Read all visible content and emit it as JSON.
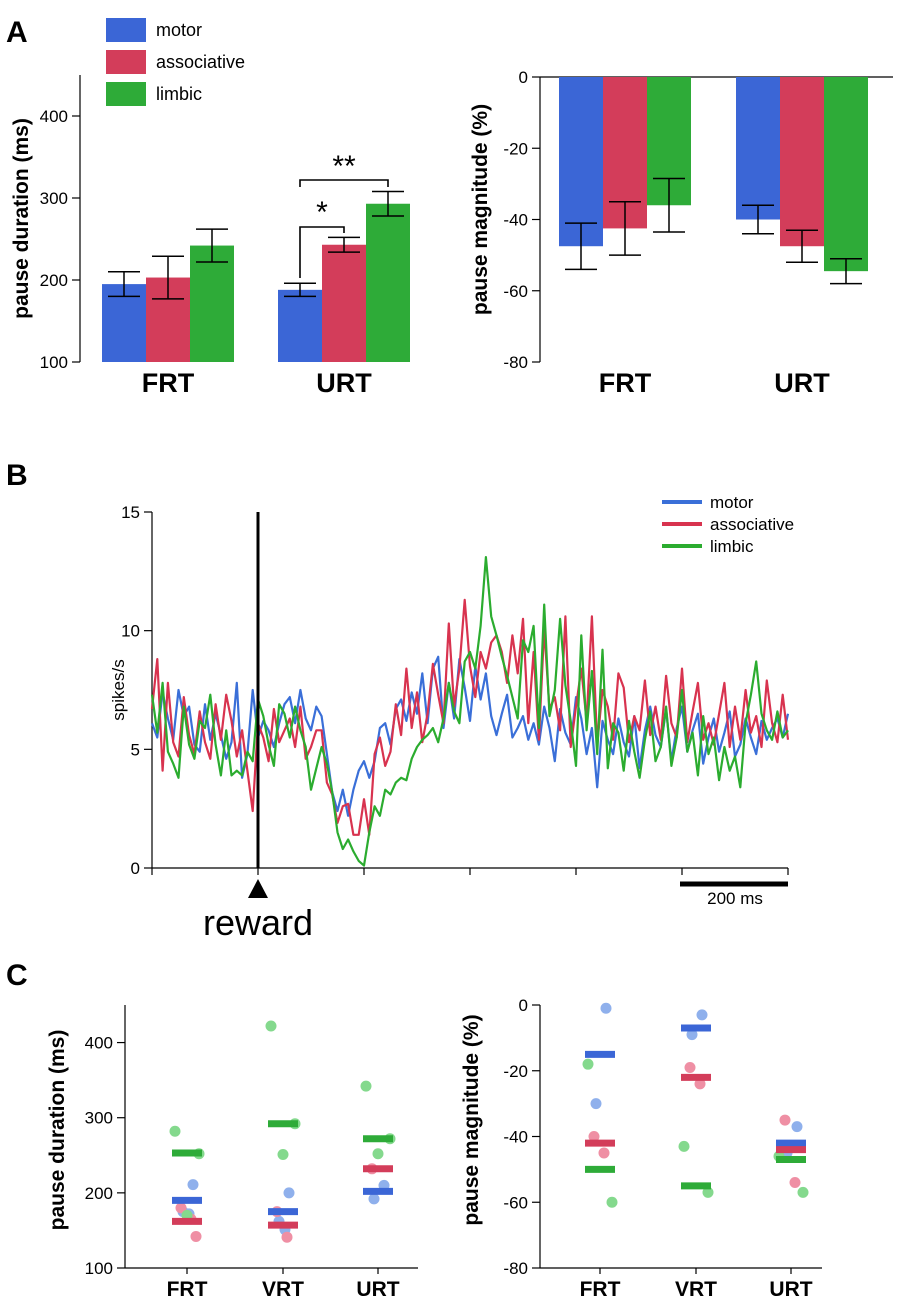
{
  "colors": {
    "motor": "#3b66d6",
    "associative": "#d33d5a",
    "limbic": "#2eab38",
    "motor_dot": "#8fb0ec",
    "associative_dot": "#ef8fa4",
    "limbic_dot": "#84d98d",
    "motor_line": "#3a6fd8",
    "associative_line": "#d8334f",
    "limbic_line": "#2bac2f"
  },
  "panels": {
    "a": "A",
    "b": "B",
    "c": "C"
  },
  "chart_data": [
    {
      "id": "A-duration",
      "type": "bar",
      "panel": "A",
      "categories": [
        "FRT",
        "URT"
      ],
      "series": [
        {
          "name": "motor",
          "values": [
            195,
            188
          ],
          "errors": [
            15,
            8
          ]
        },
        {
          "name": "associative",
          "values": [
            203,
            243
          ],
          "errors": [
            26,
            9
          ]
        },
        {
          "name": "limbic",
          "values": [
            242,
            293
          ],
          "errors": [
            20,
            15
          ]
        }
      ],
      "ylabel": "pause duration (ms)",
      "ylim": [
        100,
        450
      ],
      "yticks": [
        100,
        200,
        300,
        400
      ],
      "legend": [
        "motor",
        "associative",
        "limbic"
      ],
      "legend_position": "top-left",
      "significance": [
        {
          "label": "*",
          "between": [
            "motor",
            "associative"
          ],
          "category": "URT"
        },
        {
          "label": "**",
          "between": [
            "motor",
            "limbic"
          ],
          "category": "URT"
        }
      ]
    },
    {
      "id": "A-magnitude",
      "type": "bar",
      "panel": "A",
      "categories": [
        "FRT",
        "URT"
      ],
      "series": [
        {
          "name": "motor",
          "values": [
            -47.5,
            -40
          ],
          "errors": [
            6.5,
            4
          ]
        },
        {
          "name": "associative",
          "values": [
            -42.5,
            -47.5
          ],
          "errors": [
            7.5,
            4.5
          ]
        },
        {
          "name": "limbic",
          "values": [
            -36,
            -54.5
          ],
          "errors": [
            7.5,
            3.5
          ]
        }
      ],
      "ylabel": "pause magnitude (%)",
      "ylim": [
        -80,
        0
      ],
      "yticks": [
        0,
        -20,
        -40,
        -60,
        -80
      ]
    },
    {
      "id": "B-timecourse",
      "type": "line",
      "panel": "B",
      "ylabel": "spikes/s",
      "ylim": [
        0,
        15
      ],
      "yticks": [
        0,
        5,
        10,
        15
      ],
      "x_unit": "bin",
      "x_range": [
        0,
        120
      ],
      "event_bin": 20,
      "event_label": "reward",
      "scalebar_label": "200 ms",
      "scalebar_bins": [
        100,
        120
      ],
      "legend": [
        "motor",
        "associative",
        "limbic"
      ],
      "legend_position": "top-right",
      "series": [
        {
          "name": "motor",
          "values": [
            6.1,
            5.5,
            7.4,
            6.3,
            5.4,
            7.5,
            6.4,
            6.8,
            5.2,
            4.9,
            6.9,
            5.4,
            6.5,
            5.6,
            4.6,
            5.3,
            7.8,
            3.8,
            4.8,
            7.5,
            5.5,
            6.2,
            5.8,
            5.1,
            6.1,
            6.9,
            7.2,
            6.1,
            7.5,
            6.3,
            5.8,
            6.8,
            6.4,
            4.8,
            3.2,
            2.4,
            3.3,
            2.2,
            3.3,
            4.1,
            4.5,
            3.8,
            4.5,
            5.9,
            6.1,
            5.2,
            6.7,
            7.1,
            6.2,
            7.4,
            6.5,
            8.2,
            6.1,
            8.4,
            8.9,
            5.9,
            7.8,
            6.3,
            8.8,
            7.6,
            6.2,
            8.5,
            7.1,
            8.2,
            6.4,
            5.6,
            6.5,
            7.3,
            5.5,
            5.9,
            6.4,
            5.4,
            6.1,
            5.2,
            6.8,
            5.9,
            4.5,
            6.7,
            5.7,
            5.2,
            7.2,
            6.3,
            4.8,
            5.9,
            3.4,
            6.2,
            5.4,
            4.8,
            6.3,
            5.3,
            4.7,
            6.4,
            4.2,
            5.8,
            6.8,
            5.6,
            5.1,
            6.7,
            4.5,
            5.9,
            6.8,
            4.9,
            5.8,
            6.5,
            4.4,
            5.5,
            6.3,
            4.9,
            5.7,
            6.6,
            4.7,
            5.2,
            6.3,
            5.5,
            4.8,
            6.2,
            5.4,
            5.9,
            6.3,
            5.5,
            6.5
          ]
        },
        {
          "name": "associative",
          "values": [
            6.7,
            8.8,
            4.1,
            7.8,
            5.3,
            4.7,
            7.2,
            5.6,
            4.8,
            6.6,
            5.3,
            4.6,
            6.9,
            5.4,
            7.3,
            6.2,
            4.7,
            5.8,
            4.1,
            2.4,
            6.1,
            5.5,
            4.5,
            6.7,
            5.3,
            5.8,
            6.3,
            5.1,
            6.8,
            4.6,
            5.1,
            5.8,
            5.8,
            3.6,
            3.1,
            1.9,
            2.6,
            2.7,
            1.4,
            1.4,
            2.9,
            1.4,
            4.8,
            5.5,
            4.3,
            4.9,
            6.9,
            5.6,
            8.4,
            5.9,
            7.4,
            5.3,
            6.5,
            8.6,
            7.3,
            6.1,
            10.3,
            6.8,
            8.4,
            11.3,
            8.5,
            7.2,
            9.1,
            8.4,
            9.5,
            9.8,
            9.1,
            7.8,
            9.8,
            8.2,
            10.5,
            6.1,
            9.1,
            5.4,
            10.1,
            6.7,
            7.2,
            5.8,
            10.6,
            5.1,
            6.8,
            8.4,
            6.2,
            10.6,
            5.2,
            7.5,
            6.8,
            5.4,
            8.2,
            7.6,
            5.3,
            6.4,
            5.8,
            7.9,
            5.6,
            6.8,
            5.4,
            8.1,
            6.1,
            5.5,
            8.4,
            5.3,
            6.6,
            7.8,
            5.4,
            6.1,
            5.2,
            6.5,
            7.8,
            5.1,
            6.8,
            5.4,
            7.5,
            5.7,
            6.4,
            5.1,
            7.9,
            6.1,
            5.3,
            7.3,
            5.4
          ]
        },
        {
          "name": "limbic",
          "values": [
            7.3,
            5.7,
            7.8,
            4.9,
            4.4,
            3.8,
            6.8,
            5.2,
            4.6,
            6.2,
            5.9,
            7.3,
            5.2,
            3.9,
            5.8,
            3.9,
            4.1,
            3.9,
            4.9,
            4.5,
            7.1,
            6.4,
            5.2,
            4.3,
            6.9,
            6.5,
            5.5,
            6.8,
            5.8,
            5.1,
            3.3,
            4.2,
            5.1,
            4.4,
            3.2,
            1.5,
            0.8,
            1.2,
            0.7,
            0.3,
            0.1,
            1.5,
            2.6,
            2.2,
            3.3,
            3.1,
            3.6,
            3.8,
            3.7,
            4.6,
            5.1,
            5.4,
            5.6,
            5.9,
            5.3,
            6.3,
            7.8,
            6.6,
            6.1,
            8.7,
            9.1,
            8.4,
            10.2,
            13.1,
            10.6,
            9.8,
            8.9,
            8.1,
            7.2,
            6.3,
            9.6,
            9.1,
            10.2,
            5.9,
            11.1,
            6.4,
            7.5,
            10.5,
            7.7,
            6.2,
            4.3,
            9.8,
            5.8,
            8.3,
            4.8,
            9.2,
            4.2,
            6.1,
            5.7,
            4.1,
            6.2,
            4.9,
            3.8,
            5.4,
            6.6,
            4.5,
            5.1,
            6.8,
            4.3,
            5.5,
            7.5,
            4.9,
            5.7,
            3.9,
            6.4,
            4.8,
            5.5,
            3.7,
            5.1,
            4.1,
            4.7,
            3.4,
            6.1,
            7.3,
            8.7,
            6.5,
            5.8,
            5.4,
            6.6,
            5.5,
            5.8
          ]
        }
      ]
    },
    {
      "id": "C-duration",
      "type": "scatter",
      "panel": "C",
      "categories": [
        "FRT",
        "VRT",
        "URT"
      ],
      "ylabel": "pause duration (ms)",
      "ylim": [
        100,
        450
      ],
      "yticks": [
        100,
        200,
        300,
        400
      ],
      "means": [
        {
          "name": "motor",
          "values": [
            190,
            175,
            202
          ]
        },
        {
          "name": "associative",
          "values": [
            162,
            157,
            232
          ]
        },
        {
          "name": "limbic",
          "values": [
            253,
            292,
            272
          ]
        }
      ],
      "points": [
        {
          "name": "motor",
          "cat": 0,
          "values": [
            211,
            175,
            172
          ]
        },
        {
          "name": "associative",
          "cat": 0,
          "values": [
            180,
            165,
            142
          ]
        },
        {
          "name": "limbic",
          "cat": 0,
          "values": [
            282,
            252,
            170
          ]
        },
        {
          "name": "motor",
          "cat": 1,
          "values": [
            200,
            162,
            151
          ]
        },
        {
          "name": "associative",
          "cat": 1,
          "values": [
            175,
            141
          ]
        },
        {
          "name": "limbic",
          "cat": 1,
          "values": [
            422,
            292,
            251
          ]
        },
        {
          "name": "motor",
          "cat": 2,
          "values": [
            210,
            192
          ]
        },
        {
          "name": "associative",
          "cat": 2,
          "values": [
            232
          ]
        },
        {
          "name": "limbic",
          "cat": 2,
          "values": [
            342,
            272,
            252
          ]
        }
      ]
    },
    {
      "id": "C-magnitude",
      "type": "scatter",
      "panel": "C",
      "categories": [
        "FRT",
        "VRT",
        "URT"
      ],
      "ylabel": "pause magnitude (%)",
      "ylim": [
        -80,
        0
      ],
      "yticks": [
        0,
        -20,
        -40,
        -60,
        -80
      ],
      "means": [
        {
          "name": "motor",
          "values": [
            -15,
            -7,
            -42
          ]
        },
        {
          "name": "associative",
          "values": [
            -42,
            -22,
            -44
          ]
        },
        {
          "name": "limbic",
          "values": [
            -50,
            -55,
            -47
          ]
        }
      ],
      "points": [
        {
          "name": "motor",
          "cat": 0,
          "values": [
            -1,
            -30
          ]
        },
        {
          "name": "associative",
          "cat": 0,
          "values": [
            -40,
            -45
          ]
        },
        {
          "name": "limbic",
          "cat": 0,
          "values": [
            -18,
            -60
          ]
        },
        {
          "name": "motor",
          "cat": 1,
          "values": [
            -3,
            -9
          ]
        },
        {
          "name": "associative",
          "cat": 1,
          "values": [
            -19,
            -24
          ]
        },
        {
          "name": "limbic",
          "cat": 1,
          "values": [
            -43,
            -57
          ]
        },
        {
          "name": "motor",
          "cat": 2,
          "values": [
            -37,
            -45
          ]
        },
        {
          "name": "associative",
          "cat": 2,
          "values": [
            -35,
            -54
          ]
        },
        {
          "name": "limbic",
          "cat": 2,
          "values": [
            -46,
            -57
          ]
        }
      ]
    }
  ]
}
